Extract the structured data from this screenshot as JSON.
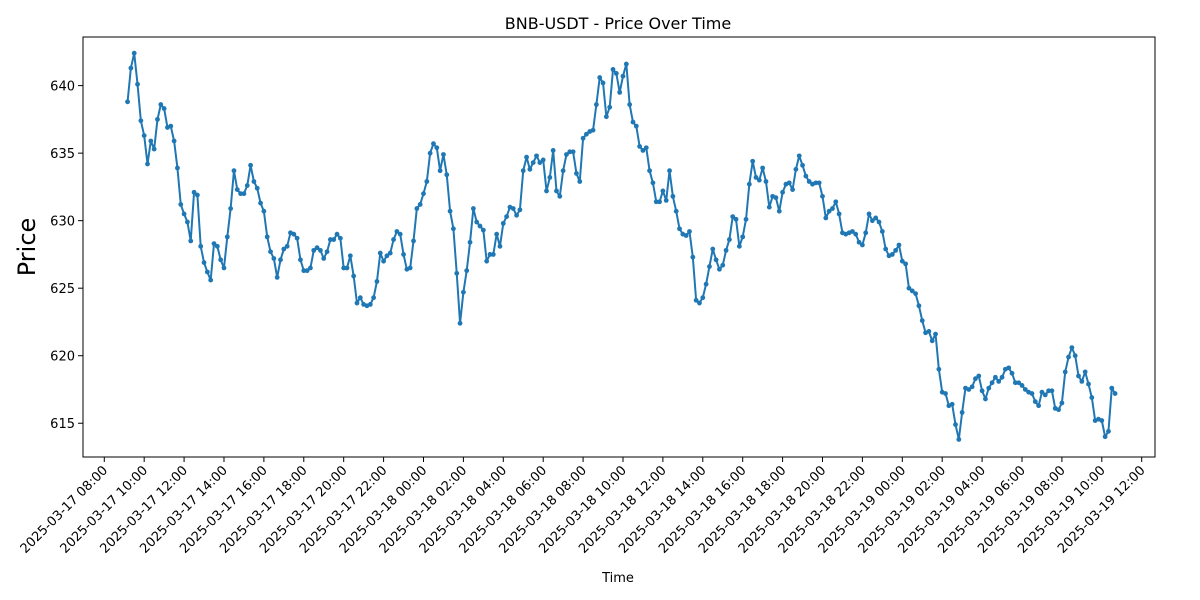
{
  "chart_data": {
    "type": "line",
    "title": "BNB-USDT - Price Over Time",
    "xlabel": "Time",
    "ylabel": "Price",
    "color": "#1f77b4",
    "grid": false,
    "legend": "none",
    "ylim": [
      612.5,
      643.6
    ],
    "yticks": [
      615,
      620,
      625,
      630,
      635,
      640
    ],
    "xlim": [
      "2025-03-17 06:56",
      "2025-03-19 12:40"
    ],
    "xticks": [
      "2025-03-17 08:00",
      "2025-03-17 10:00",
      "2025-03-17 12:00",
      "2025-03-17 14:00",
      "2025-03-17 16:00",
      "2025-03-17 18:00",
      "2025-03-17 20:00",
      "2025-03-17 22:00",
      "2025-03-18 00:00",
      "2025-03-18 02:00",
      "2025-03-18 04:00",
      "2025-03-18 06:00",
      "2025-03-18 08:00",
      "2025-03-18 10:00",
      "2025-03-18 12:00",
      "2025-03-18 14:00",
      "2025-03-18 16:00",
      "2025-03-18 18:00",
      "2025-03-18 20:00",
      "2025-03-18 22:00",
      "2025-03-19 00:00",
      "2025-03-19 02:00",
      "2025-03-19 04:00",
      "2025-03-19 06:00",
      "2025-03-19 08:00",
      "2025-03-19 10:00",
      "2025-03-19 12:00"
    ],
    "series": [
      {
        "x_start": "2025-03-17 09:10",
        "x_step_minutes": 10,
        "y": [
          638.8,
          641.3,
          642.4,
          640.1,
          637.4,
          636.3,
          634.2,
          635.9,
          635.3,
          637.5,
          638.6,
          638.3,
          636.9,
          637.0,
          635.9,
          633.9,
          631.2,
          630.5,
          629.9,
          628.5,
          632.1,
          631.9,
          628.1,
          626.9,
          626.2,
          625.6,
          628.3,
          628.1,
          627.1,
          626.5,
          628.8,
          630.9,
          633.7,
          632.3,
          632.0,
          632.0,
          632.6,
          634.1,
          632.9,
          632.4,
          631.3,
          630.7,
          628.8,
          627.7,
          627.2,
          625.8,
          627.1,
          627.9,
          628.1,
          629.1,
          629.0,
          628.7,
          627.1,
          626.3,
          626.3,
          626.5,
          627.8,
          628.0,
          627.8,
          627.2,
          627.7,
          628.6,
          628.6,
          629.0,
          628.7,
          626.5,
          626.5,
          627.4,
          625.9,
          623.9,
          624.3,
          623.8,
          623.7,
          623.8,
          624.3,
          625.5,
          627.6,
          627.0,
          627.4,
          627.6,
          628.6,
          629.2,
          629.0,
          627.5,
          626.4,
          626.5,
          628.5,
          630.9,
          631.2,
          632.0,
          632.9,
          635.0,
          635.7,
          635.4,
          633.7,
          634.9,
          633.4,
          630.7,
          629.4,
          626.1,
          622.4,
          624.7,
          626.3,
          628.4,
          630.9,
          629.9,
          629.6,
          629.3,
          627.0,
          627.5,
          627.5,
          629.0,
          628.1,
          629.8,
          630.3,
          631.0,
          630.9,
          630.4,
          630.8,
          633.7,
          634.7,
          633.8,
          634.3,
          634.8,
          634.3,
          634.5,
          632.2,
          633.2,
          635.2,
          632.2,
          631.8,
          633.7,
          634.9,
          635.1,
          635.1,
          633.5,
          632.9,
          636.1,
          636.4,
          636.6,
          636.7,
          638.6,
          640.6,
          640.2,
          637.7,
          638.4,
          641.2,
          640.9,
          639.5,
          640.7,
          641.6,
          638.6,
          637.3,
          637.0,
          635.5,
          635.2,
          635.4,
          633.7,
          632.8,
          631.4,
          631.4,
          632.2,
          631.5,
          633.7,
          631.8,
          630.7,
          629.4,
          629.0,
          628.9,
          629.2,
          627.3,
          624.1,
          623.9,
          624.3,
          625.3,
          626.6,
          627.9,
          627.1,
          626.4,
          626.7,
          627.8,
          628.6,
          630.3,
          630.1,
          628.1,
          628.8,
          630.1,
          632.7,
          634.4,
          633.2,
          633.0,
          633.9,
          632.9,
          631.0,
          631.8,
          631.7,
          630.7,
          632.1,
          632.7,
          632.8,
          632.3,
          633.8,
          634.8,
          634.1,
          633.3,
          632.9,
          632.7,
          632.8,
          632.8,
          631.8,
          630.2,
          630.7,
          630.9,
          631.4,
          630.5,
          629.1,
          629.0,
          629.1,
          629.2,
          629.0,
          628.4,
          628.2,
          629.1,
          630.5,
          630.0,
          630.2,
          629.9,
          629.2,
          627.9,
          627.4,
          627.5,
          627.8,
          628.2,
          627.0,
          626.8,
          625.0,
          624.8,
          624.6,
          623.7,
          622.6,
          621.7,
          621.8,
          621.1,
          621.6,
          619.0,
          617.3,
          617.2,
          616.3,
          616.4,
          614.9,
          613.8,
          615.8,
          617.6,
          617.5,
          617.7,
          618.3,
          618.5,
          617.4,
          616.8,
          617.6,
          618.0,
          618.4,
          618.1,
          618.4,
          619.0,
          619.1,
          618.7,
          618.0,
          618.0,
          617.8,
          617.5,
          617.3,
          617.2,
          616.6,
          616.3,
          617.3,
          617.1,
          617.4,
          617.4,
          616.1,
          616.0,
          616.5,
          618.8,
          619.9,
          620.6,
          620.0,
          618.5,
          618.1,
          618.8,
          617.9,
          616.9,
          615.2,
          615.3,
          615.2,
          614.0,
          614.4,
          617.6,
          617.2
        ]
      }
    ]
  }
}
